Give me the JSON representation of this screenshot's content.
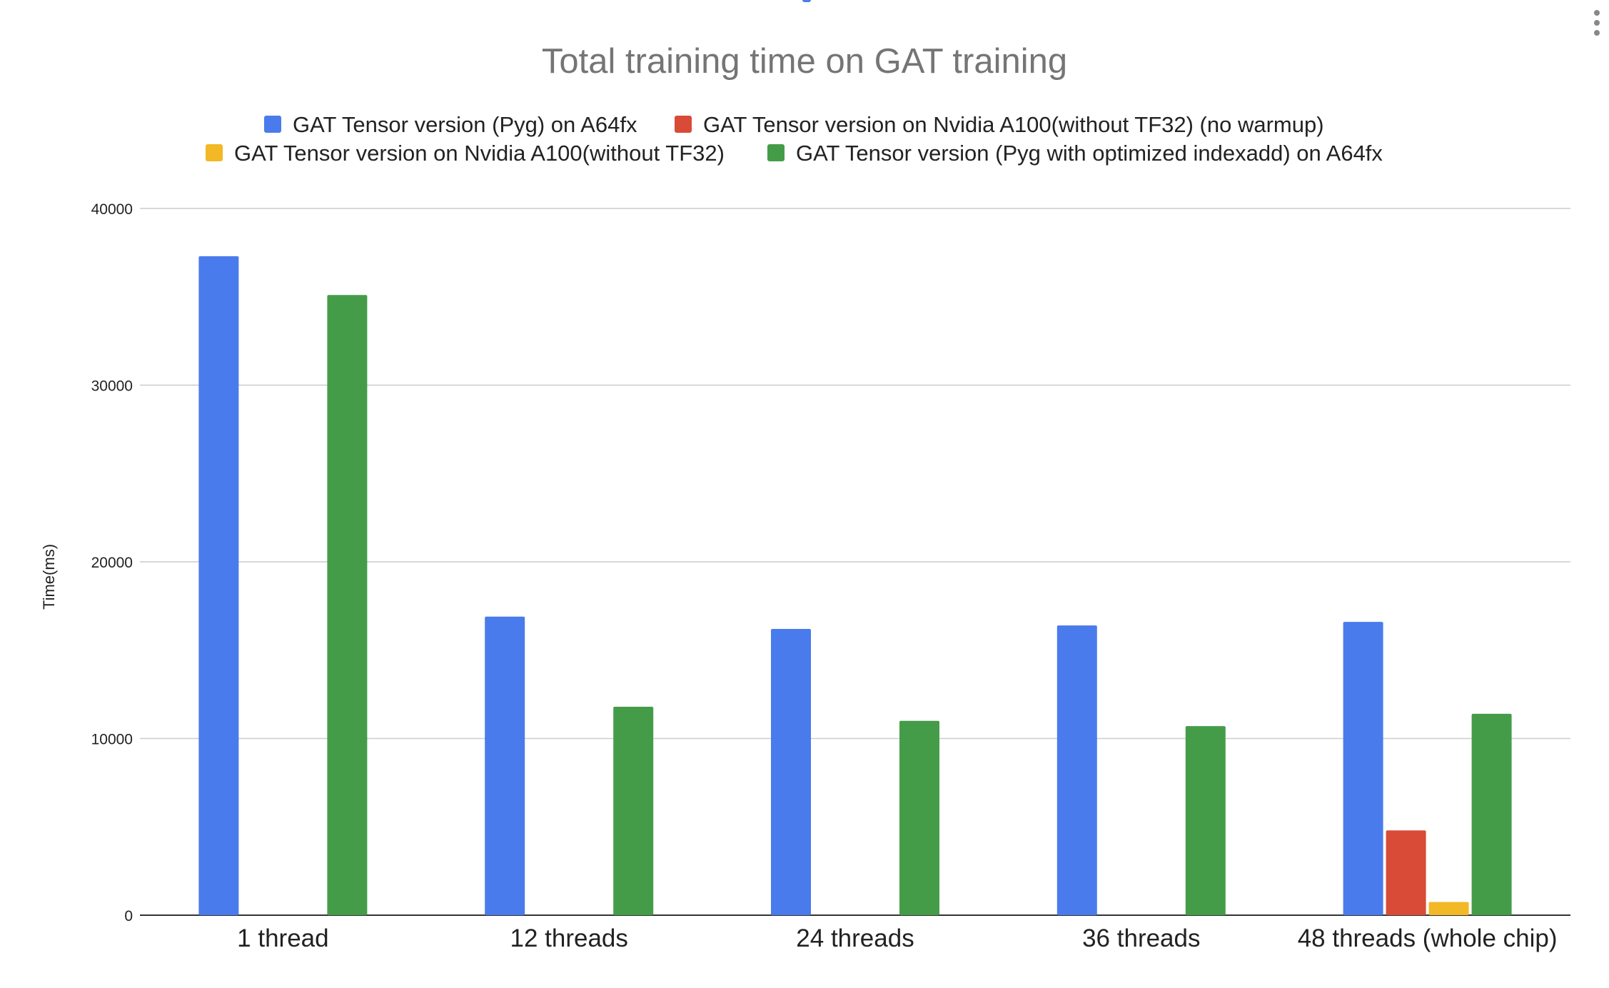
{
  "chart_data": {
    "type": "bar",
    "title": "Total training time on GAT training",
    "xlabel": "",
    "ylabel": "Time(ms)",
    "ylim": [
      0,
      40000
    ],
    "yticks": [
      0,
      10000,
      20000,
      30000,
      40000
    ],
    "grid": true,
    "legend_position": "top",
    "categories": [
      "1 thread",
      "12 threads",
      "24 threads",
      "36 threads",
      "48 threads (whole chip)"
    ],
    "series": [
      {
        "name": "GAT Tensor version (Pyg) on A64fx",
        "color": "#4a7bec",
        "values": [
          37300,
          16900,
          16200,
          16400,
          16600
        ]
      },
      {
        "name": "GAT Tensor version on Nvidia A100(without TF32) (no warmup)",
        "color": "#d94b36",
        "values": [
          null,
          null,
          null,
          null,
          4800
        ]
      },
      {
        "name": "GAT Tensor version on Nvidia A100(without TF32)",
        "color": "#f2b825",
        "values": [
          null,
          null,
          null,
          null,
          750
        ]
      },
      {
        "name": "GAT Tensor version (Pyg with optimized indexadd) on A64fx",
        "color": "#459c48",
        "values": [
          35100,
          11800,
          11000,
          10700,
          11400
        ]
      }
    ]
  },
  "menu": {
    "icon": "more-vert-icon"
  }
}
